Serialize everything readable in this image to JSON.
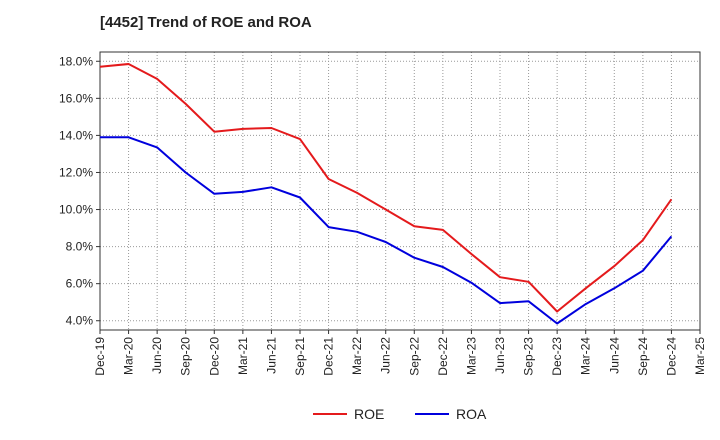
{
  "chart_data": {
    "type": "line",
    "title": "[4452]  Trend of ROE and ROA",
    "xlabel": "",
    "ylabel": "",
    "categories": [
      "Dec-19",
      "Mar-20",
      "Jun-20",
      "Sep-20",
      "Dec-20",
      "Mar-21",
      "Jun-21",
      "Sep-21",
      "Dec-21",
      "Mar-22",
      "Jun-22",
      "Sep-22",
      "Dec-22",
      "Mar-23",
      "Jun-23",
      "Sep-23",
      "Dec-23",
      "Mar-24",
      "Jun-24",
      "Sep-24",
      "Dec-24",
      "Mar-25"
    ],
    "ylim": [
      3.5,
      18.5
    ],
    "yticks": [
      4.0,
      6.0,
      8.0,
      10.0,
      12.0,
      14.0,
      16.0,
      18.0
    ],
    "ytick_labels": [
      "4.0%",
      "6.0%",
      "8.0%",
      "10.0%",
      "12.0%",
      "14.0%",
      "16.0%",
      "18.0%"
    ],
    "grid": true,
    "legend_position": "bottom-center",
    "series": [
      {
        "name": "ROE",
        "color": "#e41a1c",
        "values": [
          17.7,
          17.85,
          17.05,
          15.7,
          14.2,
          14.35,
          14.4,
          13.8,
          11.65,
          10.9,
          10.0,
          9.1,
          8.9,
          7.6,
          6.35,
          6.1,
          4.5,
          5.75,
          6.95,
          8.35,
          10.55,
          null
        ]
      },
      {
        "name": "ROA",
        "color": "#0000dd",
        "values": [
          13.9,
          13.9,
          13.35,
          12.0,
          10.85,
          10.95,
          11.2,
          10.65,
          9.05,
          8.8,
          8.25,
          7.4,
          6.9,
          6.05,
          4.95,
          5.05,
          3.85,
          4.9,
          5.75,
          6.7,
          8.55,
          null
        ]
      }
    ]
  }
}
